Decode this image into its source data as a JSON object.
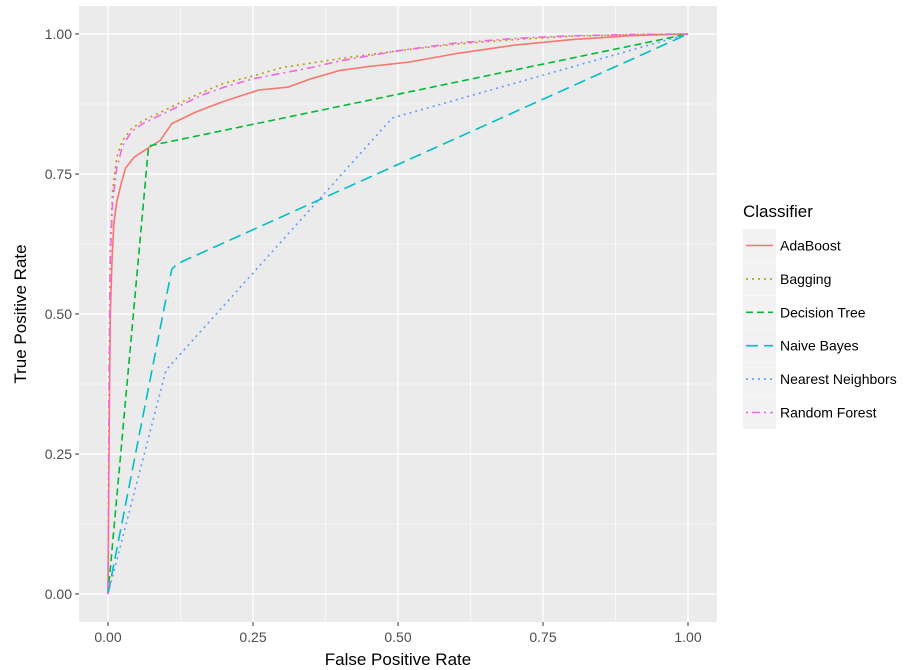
{
  "chart_data": {
    "type": "line",
    "title": "",
    "xlabel": "False Positive Rate",
    "ylabel": "True Positive Rate",
    "xlim": [
      -0.05,
      1.05
    ],
    "ylim": [
      -0.05,
      1.05
    ],
    "x_ticks": [
      "0.00",
      "0.25",
      "0.50",
      "0.75",
      "1.00"
    ],
    "y_ticks": [
      "0.00",
      "0.25",
      "0.50",
      "0.75",
      "1.00"
    ],
    "grid": true,
    "legend": {
      "title": "Classifier",
      "position": "right"
    },
    "series": [
      {
        "name": "AdaBoost",
        "color": "#F8766D",
        "dash": "solid",
        "points": [
          [
            0,
            0
          ],
          [
            0.002,
            0.3
          ],
          [
            0.004,
            0.5
          ],
          [
            0.007,
            0.6
          ],
          [
            0.01,
            0.66
          ],
          [
            0.015,
            0.7
          ],
          [
            0.022,
            0.73
          ],
          [
            0.03,
            0.76
          ],
          [
            0.045,
            0.78
          ],
          [
            0.06,
            0.79
          ],
          [
            0.075,
            0.8
          ],
          [
            0.09,
            0.81
          ],
          [
            0.11,
            0.84
          ],
          [
            0.13,
            0.85
          ],
          [
            0.15,
            0.86
          ],
          [
            0.175,
            0.87
          ],
          [
            0.2,
            0.88
          ],
          [
            0.23,
            0.89
          ],
          [
            0.26,
            0.9
          ],
          [
            0.31,
            0.905
          ],
          [
            0.35,
            0.92
          ],
          [
            0.4,
            0.935
          ],
          [
            0.45,
            0.942
          ],
          [
            0.52,
            0.95
          ],
          [
            0.6,
            0.965
          ],
          [
            0.7,
            0.98
          ],
          [
            0.8,
            0.99
          ],
          [
            0.9,
            0.997
          ],
          [
            1.0,
            1.0
          ]
        ]
      },
      {
        "name": "Bagging",
        "color": "#B79F00",
        "dash": "dotted",
        "points": [
          [
            0,
            0
          ],
          [
            0.002,
            0.45
          ],
          [
            0.004,
            0.62
          ],
          [
            0.008,
            0.72
          ],
          [
            0.015,
            0.78
          ],
          [
            0.025,
            0.81
          ],
          [
            0.04,
            0.83
          ],
          [
            0.06,
            0.845
          ],
          [
            0.09,
            0.86
          ],
          [
            0.12,
            0.875
          ],
          [
            0.16,
            0.895
          ],
          [
            0.2,
            0.912
          ],
          [
            0.25,
            0.925
          ],
          [
            0.3,
            0.94
          ],
          [
            0.35,
            0.948
          ],
          [
            0.4,
            0.956
          ],
          [
            0.5,
            0.97
          ],
          [
            0.6,
            0.982
          ],
          [
            0.7,
            0.99
          ],
          [
            0.8,
            0.996
          ],
          [
            0.9,
            0.999
          ],
          [
            1.0,
            1.0
          ]
        ]
      },
      {
        "name": "Decision Tree",
        "color": "#00BA38",
        "dash": "dashed",
        "points": [
          [
            0,
            0
          ],
          [
            0.07,
            0.8
          ],
          [
            1.0,
            1.0
          ]
        ]
      },
      {
        "name": "Naive Bayes",
        "color": "#00BFC4",
        "dash": "longdash",
        "points": [
          [
            0,
            0
          ],
          [
            0.11,
            0.58
          ],
          [
            0.12,
            0.59
          ],
          [
            1.0,
            1.0
          ]
        ]
      },
      {
        "name": "Nearest Neighbors",
        "color": "#619CFF",
        "dash": "dotted",
        "points": [
          [
            0,
            0
          ],
          [
            0.1,
            0.4
          ],
          [
            0.49,
            0.85
          ],
          [
            1.0,
            1.0
          ]
        ]
      },
      {
        "name": "Random Forest",
        "color": "#F564E3",
        "dash": "dotdash",
        "points": [
          [
            0,
            0
          ],
          [
            0.002,
            0.42
          ],
          [
            0.004,
            0.6
          ],
          [
            0.008,
            0.7
          ],
          [
            0.015,
            0.76
          ],
          [
            0.025,
            0.8
          ],
          [
            0.04,
            0.825
          ],
          [
            0.06,
            0.84
          ],
          [
            0.09,
            0.855
          ],
          [
            0.12,
            0.87
          ],
          [
            0.16,
            0.89
          ],
          [
            0.2,
            0.905
          ],
          [
            0.25,
            0.92
          ],
          [
            0.3,
            0.93
          ],
          [
            0.35,
            0.94
          ],
          [
            0.4,
            0.952
          ],
          [
            0.5,
            0.97
          ],
          [
            0.6,
            0.984
          ],
          [
            0.7,
            0.992
          ],
          [
            0.8,
            0.997
          ],
          [
            0.9,
            0.999
          ],
          [
            1.0,
            1.0
          ]
        ]
      }
    ]
  }
}
